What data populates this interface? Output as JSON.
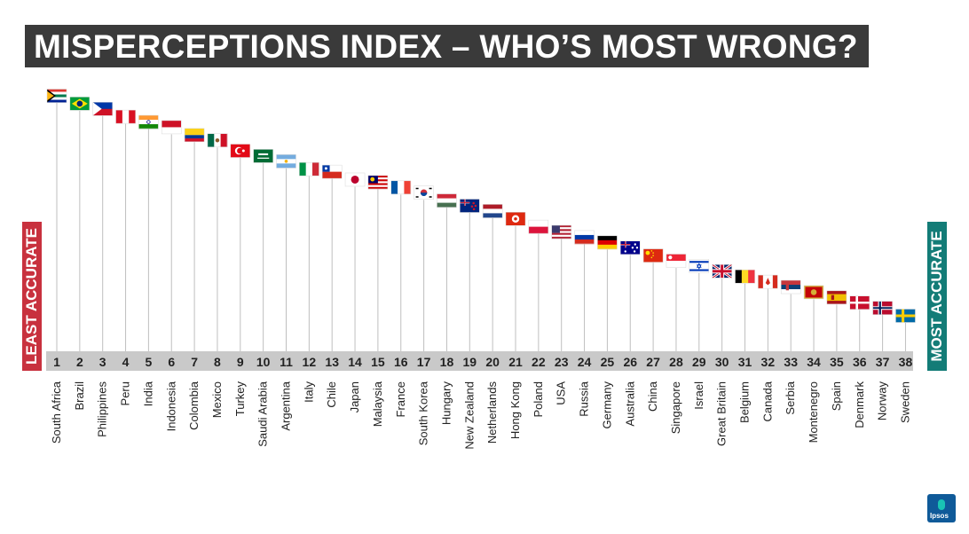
{
  "title": "MISPERCEPTIONS INDEX – WHO’S MOST WRONG?",
  "left_label": "LEAST ACCURATE",
  "right_label": "MOST ACCURATE",
  "logo_text": "Ipsos",
  "colors": {
    "least": "#c8313e",
    "most": "#137c77",
    "title_bg": "#3a3a3a",
    "logo": "#0f5a99"
  },
  "chart_data": {
    "type": "lollipop",
    "x_label": "",
    "y_label": "",
    "note": "",
    "categories": [
      "South Africa",
      "Brazil",
      "Philippines",
      "Peru",
      "India",
      "Indonesia",
      "Colombia",
      "Mexico",
      "Turkey",
      "Saudi Arabia",
      "Argentina",
      "Italy",
      "Chile",
      "Japan",
      "Malaysia",
      "France",
      "South Korea",
      "Hungary",
      "New Zealand",
      "Netherlands",
      "Hong Kong",
      "Poland",
      "USA",
      "Russia",
      "Germany",
      "Australia",
      "China",
      "Singapore",
      "Israel",
      "Great Britain",
      "Belgium",
      "Canada",
      "Serbia",
      "Montenegro",
      "Spain",
      "Denmark",
      "Norway",
      "Sweden"
    ],
    "ranks": [
      1,
      2,
      3,
      4,
      5,
      6,
      7,
      8,
      9,
      10,
      11,
      12,
      13,
      14,
      15,
      16,
      17,
      18,
      19,
      20,
      21,
      22,
      23,
      24,
      25,
      26,
      27,
      28,
      29,
      30,
      31,
      32,
      33,
      34,
      35,
      36,
      37,
      38
    ],
    "flag_icons": [
      "south-africa-flag-icon",
      "brazil-flag-icon",
      "philippines-flag-icon",
      "peru-flag-icon",
      "india-flag-icon",
      "indonesia-flag-icon",
      "colombia-flag-icon",
      "mexico-flag-icon",
      "turkey-flag-icon",
      "saudi-arabia-flag-icon",
      "argentina-flag-icon",
      "italy-flag-icon",
      "chile-flag-icon",
      "japan-flag-icon",
      "malaysia-flag-icon",
      "france-flag-icon",
      "south-korea-flag-icon",
      "hungary-flag-icon",
      "new-zealand-flag-icon",
      "netherlands-flag-icon",
      "hong-kong-flag-icon",
      "poland-flag-icon",
      "usa-flag-icon",
      "russia-flag-icon",
      "germany-flag-icon",
      "australia-flag-icon",
      "china-flag-icon",
      "singapore-flag-icon",
      "israel-flag-icon",
      "great-britain-flag-icon",
      "belgium-flag-icon",
      "canada-flag-icon",
      "serbia-flag-icon",
      "montenegro-flag-icon",
      "spain-flag-icon",
      "denmark-flag-icon",
      "norway-flag-icon",
      "sweden-flag-icon"
    ],
    "values": [
      100,
      97,
      95,
      92,
      90,
      88,
      85,
      83,
      79,
      77,
      75,
      72,
      71,
      68,
      67,
      65,
      63,
      60,
      58,
      56,
      53,
      50,
      48,
      46,
      44,
      42,
      39,
      37,
      35,
      33,
      31,
      29,
      27,
      25,
      23,
      21,
      19,
      16
    ],
    "ylim": [
      0,
      105
    ]
  }
}
